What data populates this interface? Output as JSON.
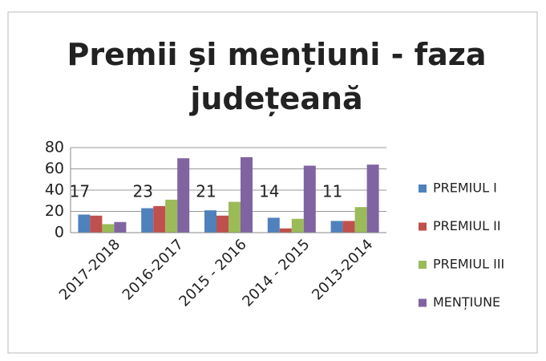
{
  "chart_data": {
    "type": "bar",
    "title": "Premii și mențiuni - faza județeană",
    "categories": [
      "2017-2018",
      "2016-2017",
      "2015 - 2016",
      "2014 - 2015",
      "2013-2014"
    ],
    "series": [
      {
        "name": "PREMIUL I",
        "color": "#4f81bd",
        "values": [
          17,
          23,
          21,
          14,
          11
        ]
      },
      {
        "name": "PREMIUL II",
        "color": "#c0504d",
        "values": [
          16,
          25,
          16,
          4,
          11
        ]
      },
      {
        "name": "PREMIUL III",
        "color": "#9bbb59",
        "values": [
          8,
          31,
          29,
          13,
          24
        ]
      },
      {
        "name": "MENȚIUNE",
        "color": "#8064a2",
        "values": [
          10,
          70,
          71,
          63,
          64
        ]
      }
    ],
    "ylim": [
      0,
      80
    ],
    "yticks": [
      0,
      20,
      40,
      60,
      80
    ],
    "grid": true,
    "legend": "right"
  }
}
